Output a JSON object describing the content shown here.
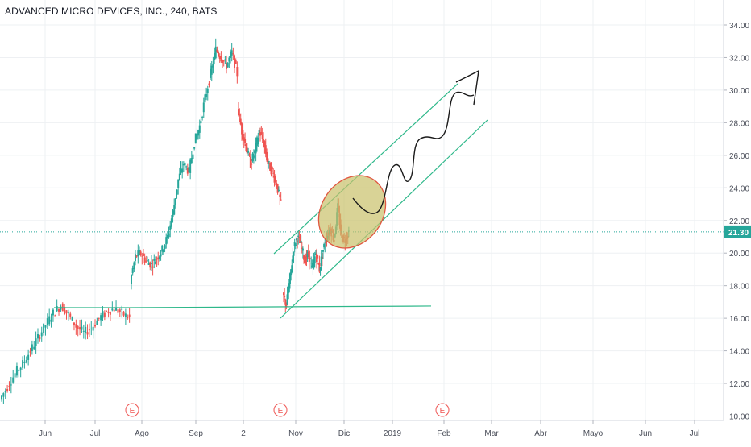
{
  "header": {
    "symbol_title": "ADVANCED MICRO DEVICES, INC., 240, BATS"
  },
  "chart_data": {
    "type": "candlestick",
    "ylim": [
      9.5,
      35.1
    ],
    "y_ticks": [
      10,
      12,
      14,
      16,
      18,
      20,
      22,
      24,
      26,
      28,
      30,
      32,
      34
    ],
    "y_tick_labels": [
      "10.00",
      "12.00",
      "14.00",
      "16.00",
      "18.00",
      "20.00",
      "22.00",
      "24.00",
      "26.00",
      "28.00",
      "30.00",
      "32.00",
      "34.00"
    ],
    "x_tick_labels": [
      "Jun",
      "Jul",
      "Ago",
      "Sep",
      "2",
      "Nov",
      "Dic",
      "2019",
      "Feb",
      "Mar",
      "Abr",
      "Mayo",
      "Jun",
      "Jul"
    ],
    "last_price": 21.3,
    "last_price_label": "21.30",
    "earnings_marker_label": "E",
    "earnings_markers": 3,
    "colors": {
      "up": "#26a69a",
      "down": "#ef5350",
      "last_price": "#26a69a",
      "earnings": "#ef5350",
      "ellipse_fill": "#c9c06a",
      "ellipse_stroke": "#e0563f"
    },
    "price_path": [
      [
        11.0,
        "A"
      ],
      [
        11.8,
        "A"
      ],
      [
        12.6,
        "A"
      ],
      [
        13.2,
        "A"
      ],
      [
        14.0,
        "A"
      ],
      [
        14.8,
        "A"
      ],
      [
        15.6,
        "A"
      ],
      [
        16.3,
        "A"
      ],
      [
        16.8,
        "A"
      ],
      [
        16.2,
        "A"
      ],
      [
        15.5,
        "A"
      ],
      [
        15.1,
        "A"
      ],
      [
        15.4,
        "A"
      ],
      [
        16.0,
        "A"
      ],
      [
        16.4,
        "A"
      ],
      [
        16.6,
        "A"
      ],
      [
        16.3,
        "A"
      ],
      [
        16.0,
        "A"
      ],
      [
        18.2,
        "B"
      ],
      [
        19.8,
        "B"
      ],
      [
        20.0,
        "B"
      ],
      [
        19.5,
        "B"
      ],
      [
        19.3,
        "B"
      ],
      [
        19.7,
        "B"
      ],
      [
        20.2,
        "B"
      ],
      [
        21.0,
        "B"
      ],
      [
        22.5,
        "B"
      ],
      [
        24.5,
        "B"
      ],
      [
        25.5,
        "B"
      ],
      [
        25.0,
        "B"
      ],
      [
        26.8,
        "B"
      ],
      [
        27.8,
        "B"
      ],
      [
        29.5,
        "B"
      ],
      [
        31.0,
        "B"
      ],
      [
        32.5,
        "B"
      ],
      [
        32.0,
        "B"
      ],
      [
        31.5,
        "B"
      ],
      [
        32.3,
        "B"
      ],
      [
        31.0,
        "B"
      ],
      [
        29.0,
        "C"
      ],
      [
        27.5,
        "C"
      ],
      [
        26.5,
        "C"
      ],
      [
        25.5,
        "C"
      ],
      [
        26.2,
        "C"
      ],
      [
        27.5,
        "C"
      ],
      [
        26.8,
        "C"
      ],
      [
        25.5,
        "C"
      ],
      [
        25.0,
        "C"
      ],
      [
        24.2,
        "C"
      ],
      [
        23.0,
        "C"
      ],
      [
        17.5,
        "D"
      ],
      [
        16.8,
        "D"
      ],
      [
        18.5,
        "D"
      ],
      [
        20.3,
        "D"
      ],
      [
        21.0,
        "D"
      ],
      [
        20.5,
        "D"
      ],
      [
        19.5,
        "D"
      ],
      [
        20.0,
        "D"
      ],
      [
        19.0,
        "D"
      ],
      [
        20.0,
        "D"
      ],
      [
        19.0,
        "D"
      ],
      [
        20.2,
        "D"
      ],
      [
        21.0,
        "D"
      ],
      [
        21.5,
        "D"
      ],
      [
        20.8,
        "D"
      ],
      [
        22.8,
        "D"
      ],
      [
        21.0,
        "D"
      ],
      [
        20.8,
        "D"
      ],
      [
        21.3,
        "D"
      ]
    ]
  }
}
